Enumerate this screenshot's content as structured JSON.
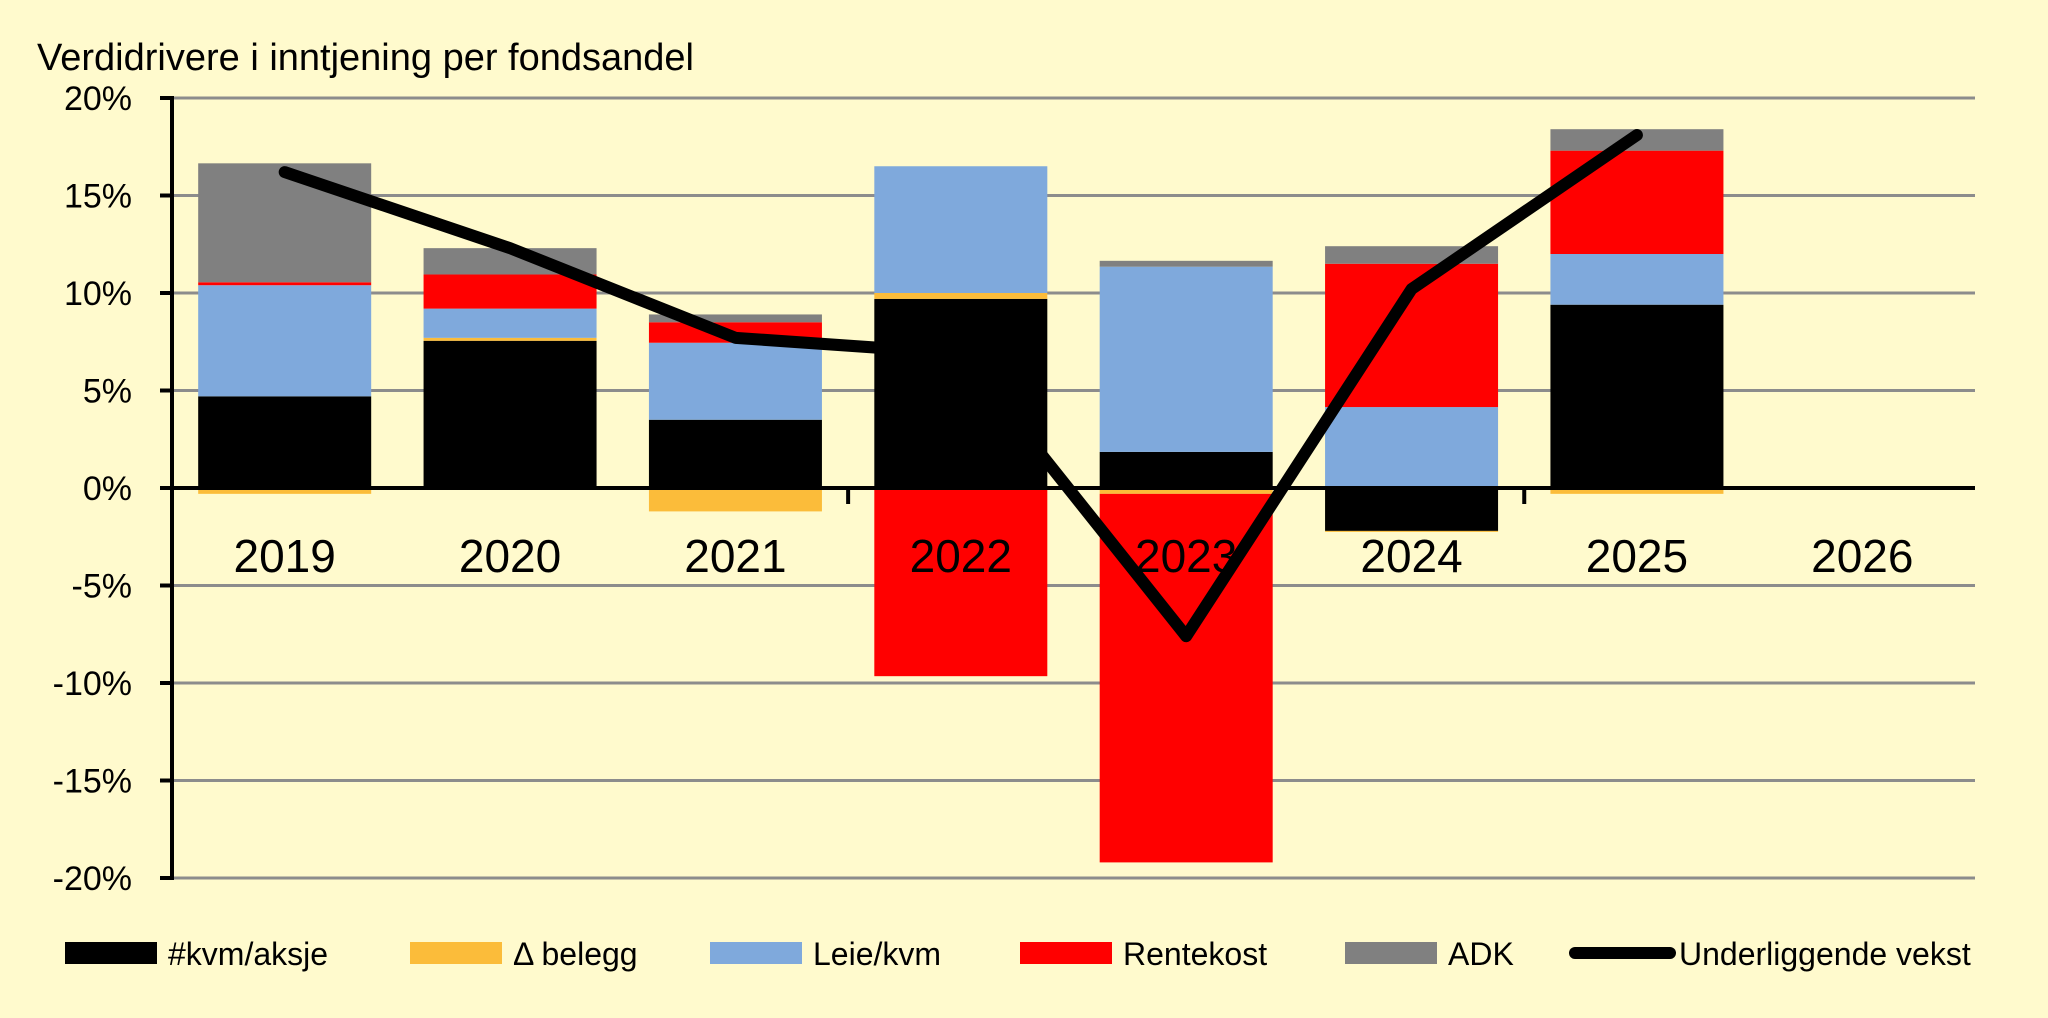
{
  "chart_data": {
    "type": "bar",
    "stacked": true,
    "title": "Verdidrivere i inntjening per fondsandel",
    "xlabel": "",
    "ylabel": "",
    "ylim": [
      -20,
      20
    ],
    "y_ticks": [
      20,
      15,
      10,
      5,
      0,
      -5,
      -10,
      -15,
      -20
    ],
    "y_tick_labels": [
      "20%",
      "15%",
      "10%",
      "5%",
      "0%",
      "-5%",
      "-10%",
      "-15%",
      "-20%"
    ],
    "y_unit": "%",
    "grid": true,
    "legend_position": "bottom",
    "background_color": "#FFFACD",
    "categories": [
      "2019",
      "2020",
      "2021",
      "2022",
      "2023",
      "2024",
      "2025",
      "2026"
    ],
    "series": [
      {
        "name": "#kvm/aksje",
        "kind": "bar",
        "color": "#000000",
        "values": [
          4.7,
          7.55,
          3.5,
          9.7,
          1.85,
          -2.2,
          9.4,
          null
        ]
      },
      {
        "name": "Δ belegg",
        "kind": "bar",
        "color": "#FBBC3A",
        "values": [
          -0.3,
          0.15,
          -1.2,
          0.3,
          -0.3,
          -0.05,
          -0.3,
          null
        ]
      },
      {
        "name": "Leie/kvm",
        "kind": "bar",
        "color": "#7FA9DC",
        "values": [
          5.7,
          1.5,
          3.95,
          6.5,
          9.5,
          4.15,
          2.6,
          null
        ]
      },
      {
        "name": "Rentekost",
        "kind": "bar",
        "color": "#FF0000",
        "values": [
          0.15,
          1.75,
          1.05,
          -9.65,
          -18.9,
          7.35,
          5.3,
          null
        ]
      },
      {
        "name": "ADK",
        "kind": "bar",
        "color": "#808080",
        "values": [
          6.1,
          1.35,
          0.4,
          0.0,
          0.3,
          0.9,
          1.1,
          null
        ]
      },
      {
        "name": "Underliggende vekst",
        "kind": "line",
        "color": "#000000",
        "values": [
          16.2,
          12.3,
          7.7,
          6.9,
          -7.6,
          10.2,
          18.1,
          null
        ]
      }
    ]
  }
}
